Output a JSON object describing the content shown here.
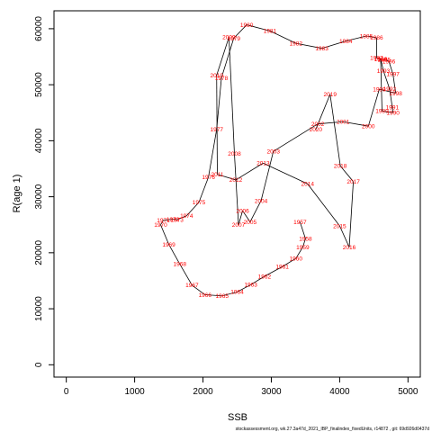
{
  "chart_data": {
    "type": "scatter",
    "xlabel": "SSB",
    "ylabel": "R(age 1)",
    "xlim": [
      -180,
      5180
    ],
    "ylim": [
      -2200,
      63200
    ],
    "x_ticks": [
      0,
      1000,
      2000,
      3000,
      4000,
      5000
    ],
    "y_ticks": [
      0,
      10000,
      20000,
      30000,
      40000,
      50000,
      60000
    ],
    "x_tick_labels": [
      "0",
      "1000",
      "2000",
      "3000",
      "4000",
      "5000"
    ],
    "y_tick_labels": [
      "0",
      "10000",
      "20000",
      "30000",
      "40000",
      "50000",
      "60000"
    ],
    "footer": "stockassessment.org, wk.27.3a47d_2021_IBP_finalindex_fixedUnits, r14872 , git: 69d926d0437d",
    "line_color": "#000000",
    "label_color": "#ff0000",
    "points": [
      {
        "year": "1957",
        "x": 3420,
        "y": 25500
      },
      {
        "year": "1958",
        "x": 3500,
        "y": 22500
      },
      {
        "year": "1959",
        "x": 3460,
        "y": 21000
      },
      {
        "year": "1960",
        "x": 3360,
        "y": 19000
      },
      {
        "year": "1961",
        "x": 3160,
        "y": 17500
      },
      {
        "year": "1962",
        "x": 2900,
        "y": 15800
      },
      {
        "year": "1963",
        "x": 2700,
        "y": 14300
      },
      {
        "year": "1964",
        "x": 2500,
        "y": 13000
      },
      {
        "year": "1965",
        "x": 2280,
        "y": 12300
      },
      {
        "year": "1966",
        "x": 2030,
        "y": 12500
      },
      {
        "year": "1967",
        "x": 1840,
        "y": 14200
      },
      {
        "year": "1968",
        "x": 1660,
        "y": 18000
      },
      {
        "year": "1969",
        "x": 1500,
        "y": 21500
      },
      {
        "year": "1970",
        "x": 1380,
        "y": 25000
      },
      {
        "year": "1971",
        "x": 1420,
        "y": 25800
      },
      {
        "year": "1972",
        "x": 1560,
        "y": 26000
      },
      {
        "year": "1973",
        "x": 1620,
        "y": 25900
      },
      {
        "year": "1974",
        "x": 1760,
        "y": 26600
      },
      {
        "year": "1975",
        "x": 1940,
        "y": 29000
      },
      {
        "year": "1976",
        "x": 2080,
        "y": 33500
      },
      {
        "year": "1977",
        "x": 2200,
        "y": 42000
      },
      {
        "year": "1978",
        "x": 2270,
        "y": 51200
      },
      {
        "year": "1979",
        "x": 2450,
        "y": 58300
      },
      {
        "year": "1980",
        "x": 2640,
        "y": 60700
      },
      {
        "year": "1981",
        "x": 2980,
        "y": 59600
      },
      {
        "year": "1982",
        "x": 3360,
        "y": 57400
      },
      {
        "year": "1983",
        "x": 3740,
        "y": 56500
      },
      {
        "year": "1984",
        "x": 4090,
        "y": 57800
      },
      {
        "year": "1985",
        "x": 4390,
        "y": 58700
      },
      {
        "year": "1986",
        "x": 4540,
        "y": 58400
      },
      {
        "year": "1987",
        "x": 4540,
        "y": 54800
      },
      {
        "year": "1988",
        "x": 4600,
        "y": 54600
      },
      {
        "year": "1989",
        "x": 4620,
        "y": 45300
      },
      {
        "year": "1990",
        "x": 4780,
        "y": 45000
      },
      {
        "year": "1991",
        "x": 4770,
        "y": 46000
      },
      {
        "year": "1992",
        "x": 4730,
        "y": 49300
      },
      {
        "year": "1993",
        "x": 4640,
        "y": 52500
      },
      {
        "year": "1994",
        "x": 4600,
        "y": 54600
      },
      {
        "year": "1995",
        "x": 4650,
        "y": 54500
      },
      {
        "year": "1996",
        "x": 4720,
        "y": 54200
      },
      {
        "year": "1997",
        "x": 4780,
        "y": 51900
      },
      {
        "year": "1998",
        "x": 4820,
        "y": 48500
      },
      {
        "year": "1999",
        "x": 4580,
        "y": 49200
      },
      {
        "year": "2000",
        "x": 4420,
        "y": 42600
      },
      {
        "year": "2001",
        "x": 4050,
        "y": 43400
      },
      {
        "year": "2002",
        "x": 3680,
        "y": 43000
      },
      {
        "year": "2003",
        "x": 3030,
        "y": 38100
      },
      {
        "year": "2004",
        "x": 2850,
        "y": 29300
      },
      {
        "year": "2005",
        "x": 2690,
        "y": 25500
      },
      {
        "year": "2006",
        "x": 2580,
        "y": 27500
      },
      {
        "year": "2007",
        "x": 2520,
        "y": 25000
      },
      {
        "year": "2008",
        "x": 2460,
        "y": 37700
      },
      {
        "year": "2009",
        "x": 2380,
        "y": 58500
      },
      {
        "year": "2010",
        "x": 2200,
        "y": 51700
      },
      {
        "year": "2011",
        "x": 2210,
        "y": 34000
      },
      {
        "year": "2012",
        "x": 2480,
        "y": 33000
      },
      {
        "year": "2013",
        "x": 2880,
        "y": 36000
      },
      {
        "year": "2014",
        "x": 3530,
        "y": 32300
      },
      {
        "year": "2015",
        "x": 4000,
        "y": 24800
      },
      {
        "year": "2016",
        "x": 4140,
        "y": 21000
      },
      {
        "year": "2017",
        "x": 4200,
        "y": 32700
      },
      {
        "year": "2018",
        "x": 4010,
        "y": 35500
      },
      {
        "year": "2019",
        "x": 3860,
        "y": 48300
      },
      {
        "year": "2020",
        "x": 3650,
        "y": 42000
      }
    ]
  }
}
